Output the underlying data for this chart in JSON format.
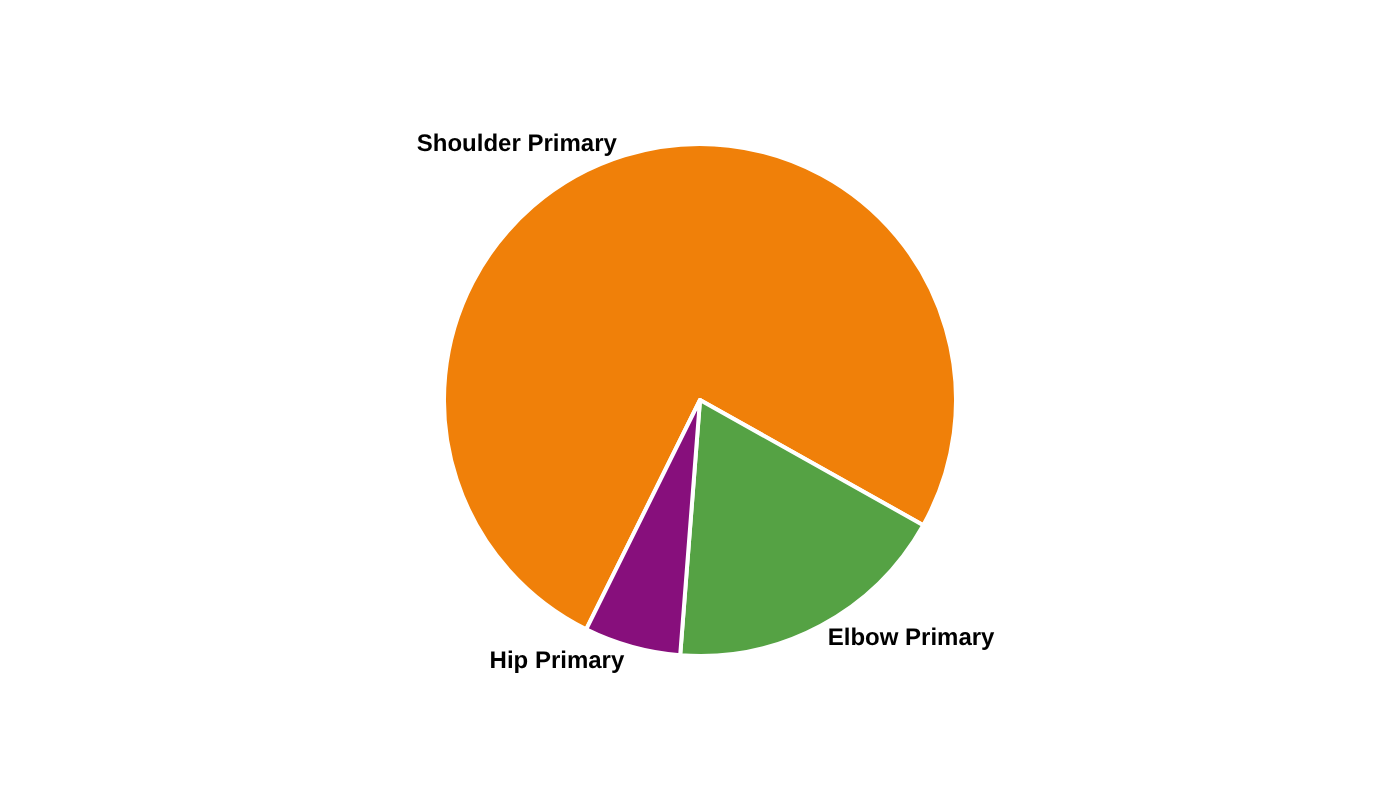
{
  "chart_data": {
    "type": "pie",
    "categories": [
      "Shoulder Primary",
      "Elbow Primary",
      "Hip Primary"
    ],
    "values": [
      75.8,
      18.1,
      6.1
    ],
    "colors": [
      "#f08009",
      "#55a244",
      "#870f7c"
    ],
    "legend": false
  }
}
